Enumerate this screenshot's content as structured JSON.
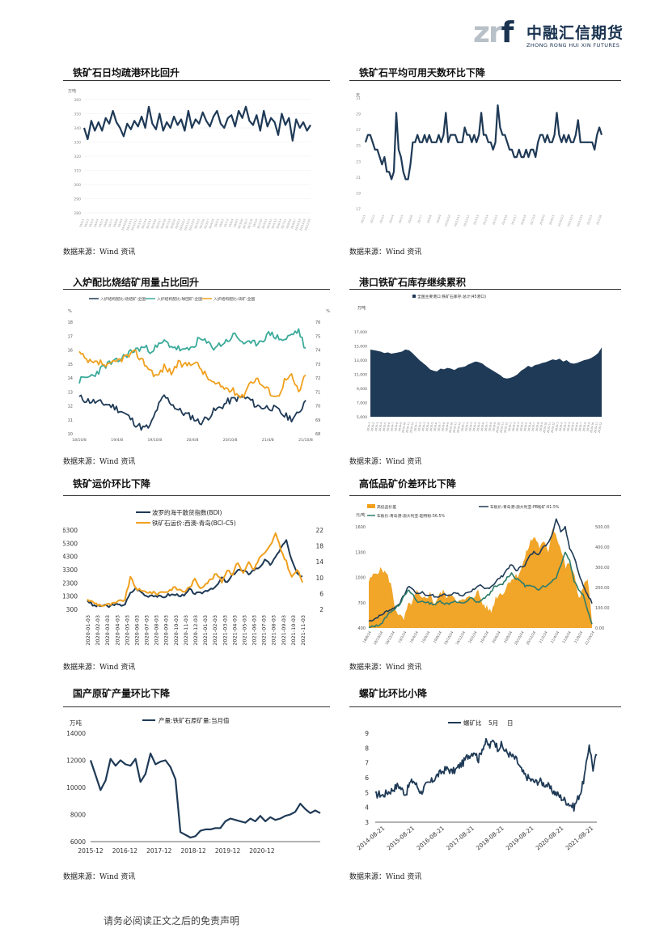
{
  "brand": {
    "mark": "zrf",
    "name_cn": "中融汇信期货",
    "name_en": "ZHONG RONG HUI XIN FUTURES"
  },
  "sections": [
    {
      "title": "铁矿石日均疏港环比回升",
      "source": "数据来源：Wind 资讯"
    },
    {
      "title": "铁矿石平均可用天数环比下降",
      "source": "数据来源：Wind 资讯"
    },
    {
      "title": "入炉配比烧结矿用量占比回升",
      "source": "数据来源：Wind 资讯"
    },
    {
      "title": "港口铁矿石库存继续累积",
      "source": "数据来源：Wind 资讯"
    },
    {
      "title": "铁矿运价环比下降",
      "source": "数据来源：Wind 资讯"
    },
    {
      "title": "高低品矿价差环比下降",
      "source": "数据来源：Wind 资讯"
    },
    {
      "title": "国产原矿产量环比下降",
      "source": "数据来源：Wind 资讯"
    },
    {
      "title": "螺矿比环比小降",
      "source": "数据来源：Wind 资讯"
    }
  ],
  "footer": "请务必阅读正文之后的免责声明",
  "chart_data": [
    {
      "type": "line",
      "unit": "万吨",
      "ylim": [
        280,
        360
      ],
      "yticks": [
        "280",
        "290",
        "300",
        "310",
        "320",
        "330",
        "340",
        "350",
        "360"
      ],
      "series": [
        {
          "values": [
            340,
            332,
            345,
            338,
            344,
            338,
            347,
            343,
            352,
            344,
            340,
            334,
            343,
            339,
            345,
            341,
            348,
            340,
            355,
            343,
            339,
            350,
            338,
            344,
            340,
            348,
            342,
            346,
            338,
            352,
            340,
            346,
            343,
            351,
            345,
            341,
            348,
            352,
            343,
            340,
            347,
            349,
            341,
            352,
            347,
            355,
            345,
            342,
            349,
            338,
            352,
            341,
            347,
            344,
            335,
            350,
            342,
            347,
            331,
            346,
            340,
            344,
            338,
            342
          ]
        }
      ],
      "color": "#1f3a56"
    },
    {
      "type": "line",
      "unit": "天",
      "ylim": [
        17,
        32
      ],
      "yticks": [
        "17",
        "19",
        "21",
        "23",
        "25",
        "27",
        "29",
        "31"
      ],
      "series": [
        {
          "values": [
            26,
            27,
            27,
            26,
            25,
            25,
            24,
            23,
            24,
            22,
            22,
            21,
            22,
            30,
            25,
            24,
            22,
            21,
            21,
            23,
            26,
            26,
            27,
            26,
            26,
            27,
            26,
            27,
            26,
            26,
            26,
            27,
            26,
            27,
            30,
            26,
            27,
            27,
            27,
            26,
            26,
            26,
            28,
            27,
            27,
            26,
            27,
            26,
            27,
            30,
            27,
            27,
            26,
            26,
            25,
            26,
            31,
            28,
            27,
            27,
            26,
            25,
            25,
            24,
            24,
            25,
            24,
            24,
            25,
            24,
            25,
            25,
            24,
            26,
            27,
            27,
            26,
            27,
            26,
            26,
            27,
            30,
            27,
            26,
            27,
            26,
            27,
            26,
            26,
            27,
            29,
            26,
            26,
            26,
            26,
            26,
            26,
            25,
            27,
            28,
            27
          ]
        }
      ],
      "color": "#1f3a56"
    },
    {
      "type": "line",
      "legend": [
        "入炉结构配比:烧结矿:全国",
        "入炉结构配比:球团矿:全国",
        "入炉结构配比:块矿:全国"
      ],
      "yleft": [
        "10",
        "11",
        "12",
        "13",
        "14",
        "15",
        "16",
        "17",
        "18"
      ],
      "yright": [
        "68",
        "69",
        "70",
        "71",
        "72",
        "73",
        "74",
        "75",
        "76"
      ],
      "xticks": [
        "18/10/8",
        "19/4/8",
        "19/10/8",
        "20/4/8",
        "20/10/8",
        "21/4/8",
        "21/10/8"
      ]
    },
    {
      "type": "area",
      "legend": [
        "全国主要港口:铁矿石库存:总计(45港口)"
      ],
      "unit": "万吨",
      "ylim": [
        5000,
        17000
      ],
      "yticks": [
        "5,000",
        "7,000",
        "9,000",
        "11,000",
        "13,000",
        "15,000",
        "17,000"
      ],
      "values": [
        14500,
        14400,
        14300,
        14200,
        14000,
        14100,
        13900,
        14000,
        14100,
        14200,
        14500,
        14400,
        14000,
        13500,
        13000,
        12600,
        12200,
        11700,
        11500,
        11400,
        11800,
        11700,
        11900,
        11800,
        11600,
        11900,
        12000,
        12100,
        12400,
        12600,
        12800,
        12700,
        12500,
        12100,
        11800,
        11500,
        11200,
        10900,
        10500,
        10400,
        10500,
        10700,
        11000,
        11500,
        11800,
        12200,
        12000,
        12300,
        12400,
        12600,
        12700,
        12900,
        13100,
        13000,
        13200,
        12800,
        13000,
        12600,
        12500,
        12600,
        12800,
        13000,
        13100,
        13300,
        13600,
        14000,
        14800
      ],
      "color": "#1f3a56"
    },
    {
      "type": "line",
      "legend": [
        "波罗的海干散货指数(BDI)",
        "铁矿石运价:西澳-青岛(BCI-C5)"
      ],
      "yleft": [
        "300",
        "1300",
        "2300",
        "3300",
        "4300",
        "5300",
        "6300"
      ],
      "yright": [
        "2",
        "6",
        "10",
        "14",
        "18",
        "22"
      ],
      "xticks": [
        "2020-01-03",
        "2020-02-03",
        "2020-03-03",
        "2020-04-03",
        "2020-05-03",
        "2020-06-03",
        "2020-07-03",
        "2020-08-03",
        "2020-09-03",
        "2020-10-03",
        "2020-11-03",
        "2020-12-03",
        "2021-01-03",
        "2021-02-03",
        "2021-03-03",
        "2021-04-03",
        "2021-05-03",
        "2021-06-03",
        "2021-07-03",
        "2021-08-03",
        "2021-09-03",
        "2021-10-03",
        "2021-11-03"
      ],
      "colors": [
        "#1f3a56",
        "#f0a01e"
      ]
    },
    {
      "type": "line",
      "legend": [
        "高低品价差",
        "车板价:青岛港:澳大利亚:PB粉矿:61.5%",
        "车板价:青岛港:澳大利亚:超特粉:56.5%"
      ],
      "unit": "元/吨",
      "yleft": [
        "400",
        "700",
        "1000",
        "1300",
        "1600"
      ],
      "yright": [
        "0.00",
        "100.00",
        "200.00",
        "300.00",
        "400.00",
        "500.00"
      ],
      "xticks": [
        "18/8/24",
        "18/10/24",
        "18/12/24",
        "19/2/24",
        "19/4/24",
        "19/6/24",
        "19/8/24",
        "19/10/24",
        "19/12/24",
        "20/2/24",
        "20/4/24",
        "20/6/24",
        "20/8/24",
        "20/10/24",
        "20/12/24",
        "21/2/24",
        "21/4/24",
        "21/6/24",
        "21/8/24",
        "21/10/24"
      ],
      "colors": [
        "#f0a01e",
        "#1f3a56",
        "#2e7d6b"
      ]
    },
    {
      "type": "line",
      "legend": [
        "产量:铁矿石原矿量:当月值"
      ],
      "unit": "万吨",
      "ylim": [
        6000,
        14000
      ],
      "yticks": [
        "6000",
        "8000",
        "10000",
        "12000",
        "14000"
      ],
      "xticks": [
        "2015-12",
        "2016-12",
        "2017-12",
        "2018-12",
        "2019-12",
        "2020-12"
      ],
      "values": [
        12000,
        10900,
        9800,
        10500,
        12100,
        11600,
        12000,
        11700,
        11600,
        12100,
        10400,
        11000,
        12500,
        11700,
        11900,
        12000,
        11500,
        10600,
        6700,
        6500,
        6300,
        6400,
        6800,
        6900,
        6900,
        7000,
        7000,
        7500,
        7700,
        7600,
        7500,
        7400,
        7700,
        7500,
        7900,
        7500,
        7800,
        7600,
        7700,
        7900,
        8000,
        8200,
        8800,
        8400,
        8100,
        8300,
        8100
      ],
      "color": "#1f3a56"
    },
    {
      "type": "line",
      "legend": [
        "螺矿比",
        "5月",
        "日"
      ],
      "ylim": [
        3,
        9
      ],
      "yticks": [
        "3",
        "4",
        "5",
        "6",
        "7",
        "8",
        "9"
      ],
      "xticks": [
        "2014-08-21",
        "2015-08-21",
        "2016-08-21",
        "2017-08-21",
        "2018-08-21",
        "2019-08-21",
        "2020-08-21",
        "2021-08-21"
      ],
      "color": "#1f3a56"
    }
  ]
}
